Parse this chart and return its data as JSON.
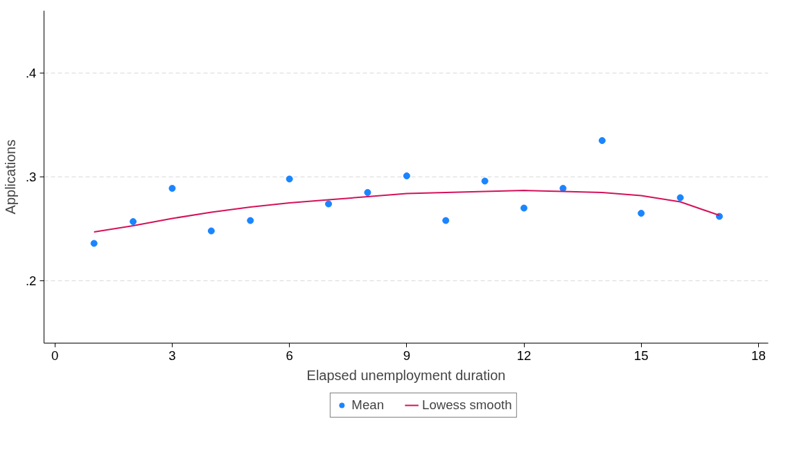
{
  "chart_data": {
    "type": "scatter",
    "xlabel": "Elapsed unemployment duration",
    "ylabel": "Applications",
    "xlim": [
      -0.28,
      18.25
    ],
    "xticks": [
      0,
      3,
      6,
      9,
      12,
      15,
      18
    ],
    "ylim": [
      0.14,
      0.46
    ],
    "yticks": [
      {
        "value": 0.2,
        "label": ".2"
      },
      {
        "value": 0.3,
        "label": ".3"
      },
      {
        "value": 0.4,
        "label": ".4"
      }
    ],
    "grid": "y",
    "legend": "bottom",
    "series": [
      {
        "name": "Mean",
        "type": "scatter",
        "marker": "circle",
        "color": "#1a85ff",
        "x": [
          1,
          2,
          3,
          4,
          5,
          6,
          7,
          8,
          9,
          10,
          11,
          12,
          13,
          14,
          15,
          16,
          17
        ],
        "values": [
          0.236,
          0.257,
          0.289,
          0.248,
          0.258,
          0.298,
          0.274,
          0.285,
          0.301,
          0.258,
          0.296,
          0.27,
          0.289,
          0.335,
          0.265,
          0.28,
          0.262
        ]
      },
      {
        "name": "Lowess smooth",
        "type": "line",
        "color": "#d41159",
        "x": [
          1,
          2,
          3,
          4,
          5,
          6,
          7,
          8,
          9,
          10,
          11,
          12,
          13,
          14,
          15,
          16,
          17
        ],
        "values": [
          0.247,
          0.253,
          0.26,
          0.266,
          0.271,
          0.275,
          0.278,
          0.281,
          0.284,
          0.285,
          0.286,
          0.287,
          0.286,
          0.285,
          0.282,
          0.276,
          0.263
        ]
      }
    ]
  }
}
